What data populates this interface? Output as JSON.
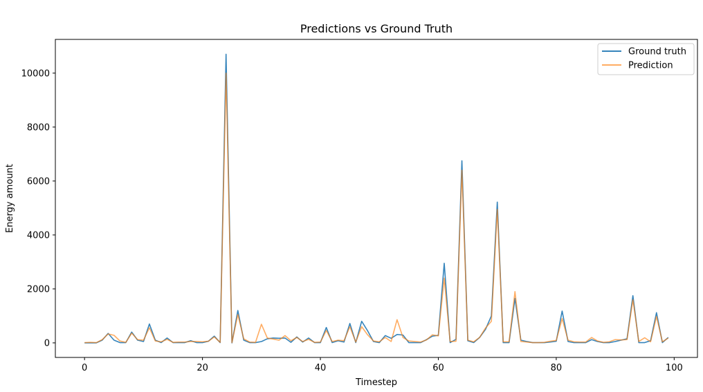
{
  "chart_data": {
    "type": "line",
    "title": "Predictions vs Ground Truth",
    "xlabel": "Timestep",
    "ylabel": "Energy amount",
    "xlim": [
      -4.95,
      103.95
    ],
    "ylim": [
      -540,
      11250
    ],
    "xticks": [
      0,
      20,
      40,
      60,
      80,
      100
    ],
    "yticks": [
      0,
      2000,
      4000,
      6000,
      8000,
      10000
    ],
    "legend_position": "top-right",
    "grid": false,
    "x": [
      0,
      1,
      2,
      3,
      4,
      5,
      6,
      7,
      8,
      9,
      10,
      11,
      12,
      13,
      14,
      15,
      16,
      17,
      18,
      19,
      20,
      21,
      22,
      23,
      24,
      25,
      26,
      27,
      28,
      29,
      30,
      31,
      32,
      33,
      34,
      35,
      36,
      37,
      38,
      39,
      40,
      41,
      42,
      43,
      44,
      45,
      46,
      47,
      48,
      49,
      50,
      51,
      52,
      53,
      54,
      55,
      56,
      57,
      58,
      59,
      60,
      61,
      62,
      63,
      64,
      65,
      66,
      67,
      68,
      69,
      70,
      71,
      72,
      73,
      74,
      75,
      76,
      77,
      78,
      79,
      80,
      81,
      82,
      83,
      84,
      85,
      86,
      87,
      88,
      89,
      90,
      91,
      92,
      93,
      94,
      95,
      96,
      97,
      98,
      99
    ],
    "series": [
      {
        "name": "Ground truth",
        "color": "#1f77b4",
        "values": [
          0,
          0,
          0,
          100,
          350,
          100,
          10,
          10,
          400,
          100,
          50,
          700,
          100,
          10,
          180,
          10,
          10,
          10,
          80,
          10,
          10,
          60,
          250,
          10,
          10700,
          0,
          1200,
          100,
          10,
          10,
          50,
          150,
          180,
          170,
          180,
          20,
          220,
          30,
          180,
          10,
          10,
          570,
          10,
          80,
          30,
          720,
          10,
          800,
          450,
          50,
          10,
          270,
          170,
          310,
          290,
          10,
          10,
          10,
          120,
          250,
          280,
          2950,
          10,
          130,
          6750,
          80,
          10,
          200,
          500,
          1000,
          5220,
          10,
          10,
          1650,
          100,
          50,
          10,
          10,
          10,
          30,
          60,
          1180,
          50,
          10,
          10,
          10,
          120,
          50,
          10,
          10,
          50,
          100,
          150,
          1750,
          10,
          10,
          80,
          1120,
          10,
          200
        ]
      },
      {
        "name": "Prediction",
        "color": "#ff7f0e",
        "values": [
          10,
          20,
          10,
          120,
          330,
          280,
          70,
          20,
          360,
          120,
          100,
          560,
          70,
          40,
          130,
          20,
          30,
          30,
          50,
          50,
          40,
          60,
          220,
          20,
          10000,
          10,
          1050,
          150,
          30,
          20,
          690,
          180,
          140,
          100,
          270,
          80,
          200,
          50,
          130,
          20,
          30,
          460,
          50,
          100,
          80,
          600,
          30,
          600,
          300,
          70,
          40,
          200,
          50,
          860,
          200,
          70,
          50,
          30,
          110,
          300,
          260,
          2400,
          50,
          60,
          6400,
          100,
          40,
          200,
          550,
          800,
          4950,
          40,
          40,
          1900,
          50,
          30,
          10,
          10,
          20,
          60,
          90,
          900,
          100,
          40,
          30,
          30,
          200,
          70,
          20,
          40,
          120,
          110,
          120,
          1600,
          50,
          190,
          40,
          980,
          40,
          180
        ]
      }
    ]
  }
}
